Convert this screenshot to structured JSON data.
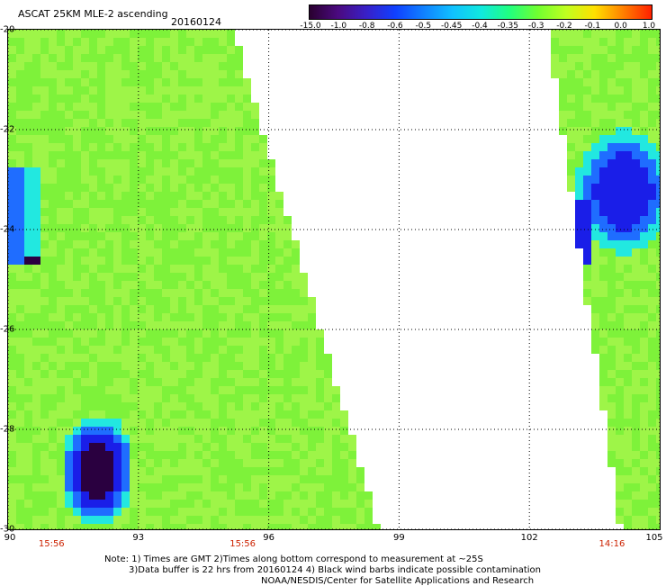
{
  "header": {
    "title": "ASCAT 25KM MLE-2 ascending",
    "date": "20160124"
  },
  "colorbar": {
    "labels": [
      "-15.0",
      "-1.0",
      "-0.8",
      "-0.6",
      "-0.5",
      "-0.45",
      "-0.4",
      "-0.35",
      "-0.3",
      "-0.2",
      "-0.1",
      "0.0",
      "1.0"
    ],
    "colors": [
      "#2a0030",
      "#4b0a80",
      "#3820c8",
      "#1040ff",
      "#1080ff",
      "#10c0ff",
      "#10e8e0",
      "#20ff80",
      "#70ff30",
      "#c0ff20",
      "#ffe000",
      "#ff8000",
      "#ff2000"
    ]
  },
  "map": {
    "lon_range": [
      90,
      105
    ],
    "lat_range": [
      -30,
      -20
    ],
    "lon_ticks": [
      "90",
      "93",
      "96",
      "99",
      "102",
      "105"
    ],
    "lat_ticks": [
      "-20",
      "-22",
      "-24",
      "-26",
      "-28",
      "-30"
    ],
    "pass_times": [
      {
        "label": "15:56",
        "lon": 91
      },
      {
        "label": "15:56",
        "lon": 95.4
      },
      {
        "label": "14:16",
        "lon": 103.9
      }
    ],
    "colors": {
      "base": "#7ef23a",
      "light": "#9ef548",
      "cyan": "#22e8e0",
      "blue": "#1f6dff",
      "deep_blue": "#1a1ee8",
      "dark": "#2a0040"
    }
  },
  "notes": {
    "line1": "Note: 1) Times are GMT 2)Times along bottom correspond to measurement at ~25S",
    "line2": "3)Data buffer is 22 hrs from 20160124 4) Black wind barbs indicate possible contamination",
    "line3": "NOAA/NESDIS/Center for Satellite Applications and Research"
  }
}
